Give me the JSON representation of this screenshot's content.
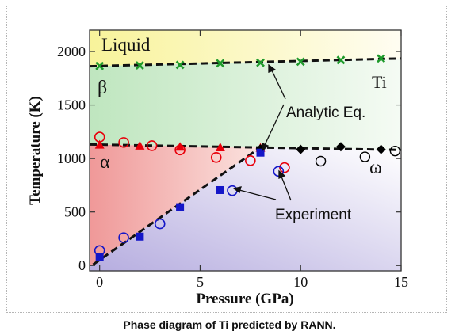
{
  "caption": "Phase diagram of Ti predicted by RANN.",
  "chart_data": {
    "type": "scatter",
    "xlabel": "Pressure (GPa)",
    "ylabel": "Temperature (K)",
    "xlim": [
      -0.5,
      15
    ],
    "ylim": [
      -50,
      2200
    ],
    "x_ticks": [
      0,
      5,
      10,
      15
    ],
    "y_ticks": [
      0,
      500,
      1000,
      1500,
      2000
    ],
    "region_labels": {
      "liquid": "Liquid",
      "beta": "β",
      "alpha": "α",
      "omega": "ω",
      "element": "Ti"
    },
    "annotations": {
      "analytic": "Analytic Eq.",
      "experiment": "Experiment"
    },
    "colors": {
      "liquid": "#f7f3b4",
      "beta": "#d9efd9",
      "alpha": "#f4b9b8",
      "omega": "#c9c3e6",
      "green": "#1e9a2b",
      "red": "#e8000b",
      "blue": "#1416c8",
      "black": "#000000"
    },
    "boundaries": {
      "liquid_beta": [
        [
          0,
          1865
        ],
        [
          15,
          1935
        ]
      ],
      "beta_alpha": [
        [
          0,
          1130
        ],
        [
          15,
          1080
        ]
      ],
      "alpha_omega": [
        [
          0,
          50
        ],
        [
          8,
          1080
        ]
      ]
    },
    "series": [
      {
        "marker": "x-green",
        "points": [
          [
            0,
            1865
          ],
          [
            2,
            1870
          ],
          [
            4,
            1875
          ],
          [
            6,
            1890
          ],
          [
            8,
            1895
          ],
          [
            10,
            1905
          ],
          [
            12,
            1920
          ],
          [
            14,
            1935
          ]
        ]
      },
      {
        "marker": "triangle-red",
        "points": [
          [
            0,
            1130
          ],
          [
            2,
            1120
          ],
          [
            4,
            1110
          ],
          [
            6,
            1105
          ],
          [
            8,
            1100
          ]
        ]
      },
      {
        "marker": "diamond-black",
        "points": [
          [
            8,
            1090
          ],
          [
            10,
            1085
          ],
          [
            12,
            1110
          ],
          [
            14,
            1085
          ]
        ]
      },
      {
        "marker": "square-blue",
        "points": [
          [
            0,
            80
          ],
          [
            2,
            270
          ],
          [
            4,
            545
          ],
          [
            6,
            705
          ],
          [
            8,
            1055
          ]
        ]
      },
      {
        "marker": "circle-red",
        "points": [
          [
            0,
            1200
          ],
          [
            1.2,
            1150
          ],
          [
            2.6,
            1120
          ],
          [
            4,
            1080
          ],
          [
            5.8,
            1010
          ],
          [
            7.5,
            980
          ],
          [
            9.2,
            915
          ]
        ]
      },
      {
        "marker": "circle-blue",
        "points": [
          [
            0,
            140
          ],
          [
            1.2,
            260
          ],
          [
            3,
            390
          ],
          [
            6.6,
            700
          ],
          [
            8.9,
            880
          ]
        ]
      },
      {
        "marker": "circle-black",
        "points": [
          [
            11,
            975
          ],
          [
            13.2,
            1015
          ],
          [
            14.7,
            1070
          ]
        ]
      }
    ]
  }
}
